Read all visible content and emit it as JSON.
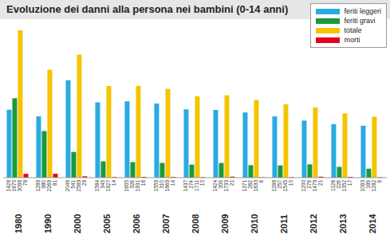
{
  "chart_data": {
    "type": "bar",
    "title": "Evoluzione dei danni alla persona nei bambini (0-14 anni)",
    "categories": [
      "1980",
      "1990",
      "2000",
      "2005",
      "2006",
      "2007",
      "2008",
      "2009",
      "2010",
      "2011",
      "2012",
      "2013",
      "2014"
    ],
    "series": [
      {
        "name": "feriti leggeri",
        "color": "#29abe2",
        "values": [
          1428,
          1289,
          2048,
          1584,
          1605,
          1559,
          1437,
          1424,
          1371,
          1288,
          1200,
          1126,
          1093
        ]
      },
      {
        "name": "feriti gravi",
        "color": "#1a9a3a",
        "values": [
          1670,
          980,
          541,
          343,
          326,
          310,
          274,
          309,
          262,
          257,
          279,
          226,
          189
        ]
      },
      {
        "name": "totale",
        "color": "#f5c400",
        "values": [
          3098,
          2269,
          2589,
          1927,
          1931,
          1869,
          1711,
          1733,
          1633,
          1545,
          1479,
          1352,
          1282
        ]
      },
      {
        "name": "morti",
        "color": "#e3001b",
        "values": [
          78,
          81,
          28,
          14,
          16,
          14,
          10,
          21,
          8,
          10,
          21,
          17,
          9
        ]
      }
    ],
    "ylim": [
      0,
      3200
    ],
    "data_labels": true,
    "tick_labels": "x",
    "grid": false,
    "legend": "top-right"
  }
}
